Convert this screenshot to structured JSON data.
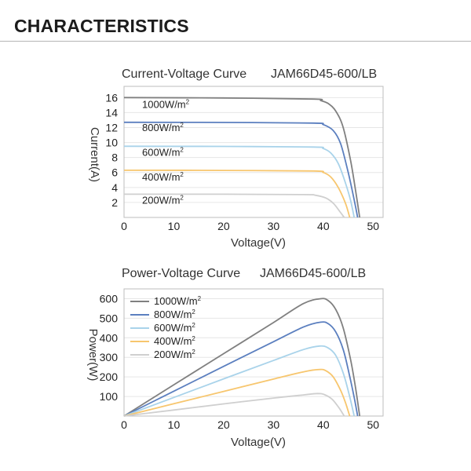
{
  "page": {
    "heading": "CHARACTERISTICS"
  },
  "chart_data": [
    {
      "type": "line",
      "title": "Current-Voltage Curve",
      "model": "JAM66D45-600/LB",
      "xlabel": "Voltage(V)",
      "ylabel": "Current(A)",
      "xlim": [
        0,
        52
      ],
      "ylim": [
        0,
        17.5
      ],
      "xticks": [
        0,
        10,
        20,
        30,
        40,
        50
      ],
      "yticks": [
        2,
        4,
        6,
        8,
        10,
        12,
        14,
        16
      ],
      "grid": true,
      "legend": "inline-left",
      "series": [
        {
          "name": "1000W/m",
          "sup": "2",
          "color": "#808080",
          "x": [
            0,
            20,
            38,
            39.5,
            41,
            42.5,
            44,
            45.5,
            46.5,
            47.3
          ],
          "y": [
            16.0,
            15.95,
            15.8,
            15.6,
            15.2,
            14.2,
            12.0,
            7.5,
            3.5,
            0
          ]
        },
        {
          "name": "800W/m",
          "sup": "2",
          "color": "#5b7fbf",
          "x": [
            0,
            20,
            38,
            40,
            42,
            43.5,
            45,
            46,
            46.9
          ],
          "y": [
            12.7,
            12.68,
            12.6,
            12.4,
            11.6,
            9.8,
            6.0,
            3.0,
            0
          ]
        },
        {
          "name": "600W/m",
          "sup": "2",
          "color": "#a9d3ea",
          "x": [
            0,
            20,
            38,
            40,
            41.5,
            43,
            44.5,
            45.5,
            46.2
          ],
          "y": [
            9.5,
            9.48,
            9.4,
            9.2,
            8.6,
            7.2,
            4.5,
            2.2,
            0
          ]
        },
        {
          "name": "400W/m",
          "sup": "2",
          "color": "#f7c66e",
          "x": [
            0,
            20,
            38,
            40,
            41.5,
            43,
            44.5,
            45.3
          ],
          "y": [
            6.3,
            6.28,
            6.2,
            6.0,
            5.4,
            4.0,
            1.8,
            0
          ]
        },
        {
          "name": "200W/m",
          "sup": "2",
          "color": "#cfcfcf",
          "x": [
            0,
            20,
            36,
            38.5,
            40.5,
            42,
            43.3,
            44.2
          ],
          "y": [
            3.1,
            3.1,
            3.05,
            2.95,
            2.6,
            1.9,
            0.8,
            0
          ]
        }
      ]
    },
    {
      "type": "line",
      "title": "Power-Voltage Curve",
      "model": "JAM66D45-600/LB",
      "xlabel": "Voltage(V)",
      "ylabel": "Power(W)",
      "xlim": [
        0,
        52
      ],
      "ylim": [
        0,
        650
      ],
      "xticks": [
        0,
        10,
        20,
        30,
        40,
        50
      ],
      "yticks": [
        100,
        200,
        300,
        400,
        500,
        600
      ],
      "grid": true,
      "legend": "top-left",
      "series": [
        {
          "name": "1000W/m",
          "sup": "2",
          "color": "#808080",
          "x": [
            0,
            10,
            20,
            30,
            36,
            39.5,
            41,
            42.5,
            44,
            45.5,
            46.5,
            47.3
          ],
          "y": [
            0,
            160,
            319,
            478,
            575,
            600,
            590,
            545,
            450,
            285,
            140,
            0
          ]
        },
        {
          "name": "800W/m",
          "sup": "2",
          "color": "#5b7fbf",
          "x": [
            0,
            10,
            20,
            30,
            36,
            39.5,
            41,
            42.5,
            44,
            45.2,
            46.2,
            46.9
          ],
          "y": [
            0,
            127,
            254,
            380,
            455,
            480,
            472,
            430,
            340,
            215,
            95,
            0
          ]
        },
        {
          "name": "600W/m",
          "sup": "2",
          "color": "#a9d3ea",
          "x": [
            0,
            10,
            20,
            30,
            36,
            39.3,
            41,
            42.5,
            44,
            45.2,
            46.2
          ],
          "y": [
            0,
            95,
            190,
            284,
            340,
            358,
            348,
            310,
            220,
            110,
            0
          ]
        },
        {
          "name": "400W/m",
          "sup": "2",
          "color": "#f7c66e",
          "x": [
            0,
            10,
            20,
            30,
            36,
            39.2,
            40.5,
            42,
            43.5,
            44.5,
            45.3
          ],
          "y": [
            0,
            63,
            126,
            189,
            226,
            238,
            232,
            200,
            130,
            65,
            0
          ]
        },
        {
          "name": "200W/m",
          "sup": "2",
          "color": "#cfcfcf",
          "x": [
            0,
            10,
            20,
            30,
            36,
            38.8,
            40.2,
            41.8,
            43.2,
            44.2
          ],
          "y": [
            0,
            31,
            62,
            92,
            108,
            115,
            110,
            85,
            40,
            0
          ]
        }
      ]
    }
  ]
}
